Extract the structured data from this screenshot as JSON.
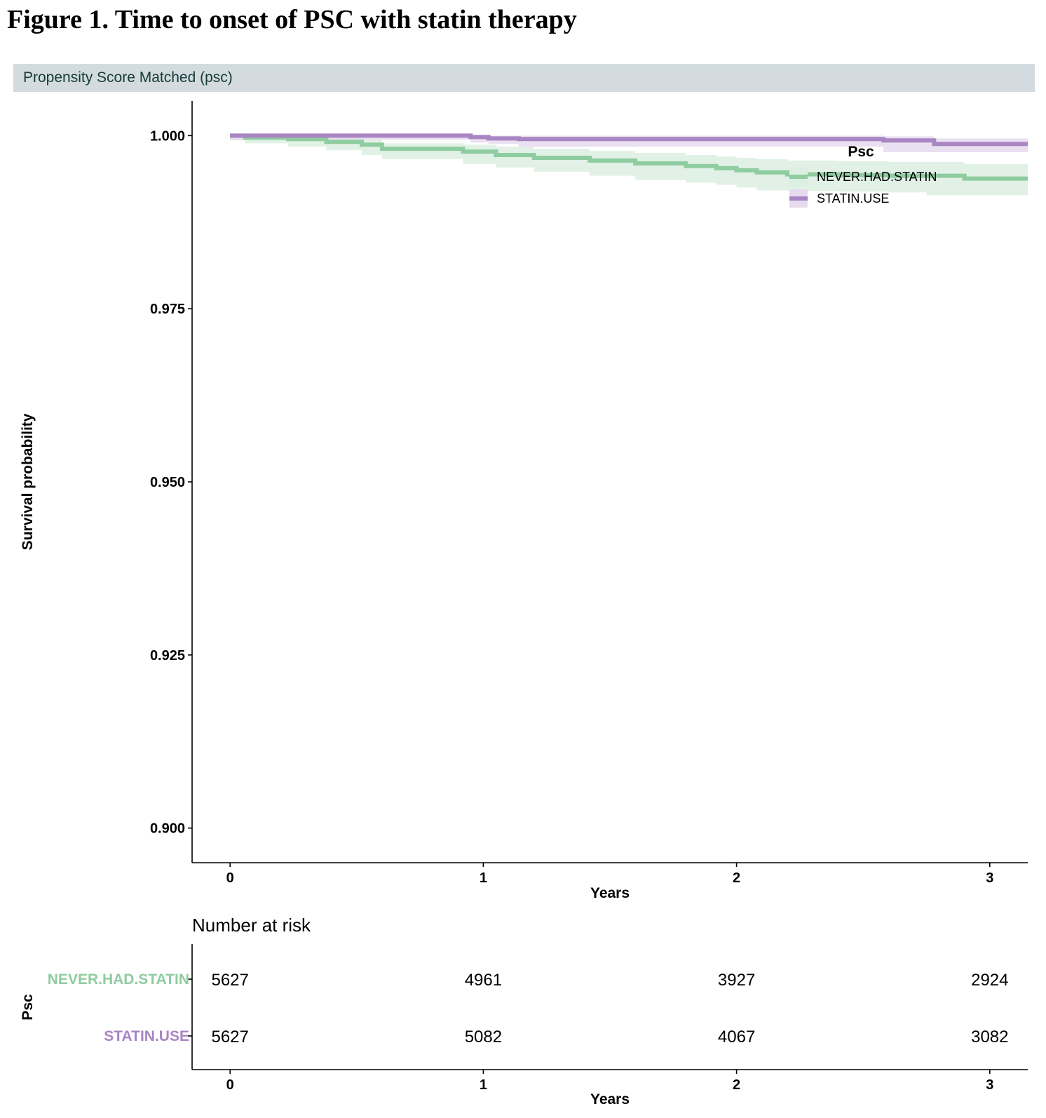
{
  "figure_title": "Figure 1. Time to onset of PSC with statin therapy",
  "panel_label": "Propensity Score Matched (psc)",
  "chart_data": {
    "type": "line",
    "subtype": "kaplan-meier",
    "xlabel": "Years",
    "ylabel": "Survival probability",
    "xlim": [
      -0.15,
      3.15
    ],
    "ylim": [
      0.895,
      1.005
    ],
    "x_ticks": [
      "0",
      "1",
      "2",
      "3"
    ],
    "y_ticks": [
      "0.900",
      "0.925",
      "0.950",
      "0.975",
      "1.000"
    ],
    "legend": {
      "title": "Psc",
      "position": "top-right"
    },
    "series": [
      {
        "name": "NEVER.HAD.STATIN",
        "color": "#8fcca0",
        "band_color": "#dcefe2",
        "x": [
          0,
          0.06,
          0.23,
          0.38,
          0.52,
          0.6,
          0.92,
          1.05,
          1.2,
          1.42,
          1.6,
          1.8,
          1.92,
          2.0,
          2.08,
          2.2,
          2.4,
          2.6,
          2.75,
          2.9,
          3.15
        ],
        "y": [
          1.0,
          0.9997,
          0.9995,
          0.9991,
          0.9987,
          0.9981,
          0.9977,
          0.9972,
          0.9968,
          0.9964,
          0.996,
          0.9956,
          0.9953,
          0.995,
          0.9947,
          0.9944,
          0.9943,
          0.9942,
          0.9942,
          0.9938,
          0.9938
        ],
        "lower": [
          1.0,
          0.9993,
          0.9989,
          0.9984,
          0.9979,
          0.9972,
          0.9966,
          0.9959,
          0.9954,
          0.9948,
          0.9942,
          0.9936,
          0.9932,
          0.9929,
          0.9925,
          0.9921,
          0.992,
          0.9919,
          0.9918,
          0.9914,
          0.9914
        ],
        "upper": [
          1.0,
          1.0,
          0.9999,
          0.9997,
          0.9994,
          0.9989,
          0.9987,
          0.9984,
          0.9981,
          0.9978,
          0.9975,
          0.9972,
          0.997,
          0.9968,
          0.9966,
          0.9964,
          0.9963,
          0.9962,
          0.9962,
          0.9959,
          0.9959
        ]
      },
      {
        "name": "STATIN.USE",
        "color": "#a985c3",
        "band_color": "#e6dbee",
        "x": [
          0,
          0.95,
          1.02,
          1.14,
          2.58,
          2.78,
          3.15
        ],
        "y": [
          1.0,
          0.9998,
          0.9996,
          0.9995,
          0.9993,
          0.9988,
          0.9988
        ],
        "lower": [
          1.0,
          0.9994,
          0.999,
          0.9988,
          0.9984,
          0.9976,
          0.9976
        ],
        "upper": [
          1.0,
          1.0,
          1.0,
          1.0,
          0.9999,
          0.9996,
          0.9996
        ]
      }
    ],
    "risk_table": {
      "title": "Number at risk",
      "ylabel": "Psc",
      "xlabel": "Years",
      "times": [
        "0",
        "1",
        "2",
        "3"
      ],
      "rows": [
        {
          "group": "NEVER.HAD.STATIN",
          "color": "#8fcca0",
          "values": [
            "5627",
            "4961",
            "3927",
            "2924"
          ]
        },
        {
          "group": "STATIN.USE",
          "color": "#a985c3",
          "values": [
            "5627",
            "5082",
            "4067",
            "3082"
          ]
        }
      ]
    }
  }
}
